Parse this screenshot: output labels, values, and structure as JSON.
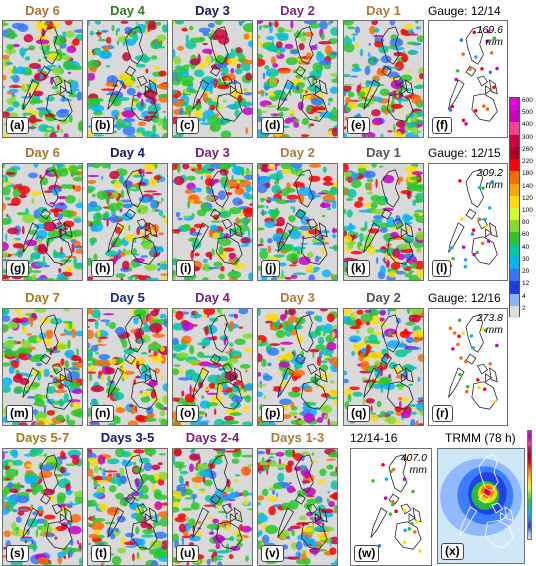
{
  "colors": {
    "day": {
      "Day 6": "#b0742a",
      "Day 4": "#1f7a1f",
      "Day 3": "#141478",
      "Day 2": "#7a1f7a",
      "Day 1": "#b0742a"
    }
  },
  "rows": [
    {
      "panels": [
        {
          "id": "a",
          "title": "Day 6",
          "title_color": "#b0742a",
          "label": "(a)",
          "icon": "rainfall-map-icon"
        },
        {
          "id": "b",
          "title": "Day 4",
          "title_color": "#2e7d1e",
          "label": "(b)",
          "icon": "rainfall-map-icon"
        },
        {
          "id": "c",
          "title": "Day 3",
          "title_color": "#151870",
          "label": "(c)",
          "icon": "rainfall-map-icon"
        },
        {
          "id": "d",
          "title": "Day 2",
          "title_color": "#7c2a7c",
          "label": "(d)",
          "icon": "rainfall-map-icon"
        },
        {
          "id": "e",
          "title": "Day 1",
          "title_color": "#b07a3a",
          "label": "(e)",
          "icon": "rainfall-map-icon"
        }
      ],
      "gauge": {
        "title": "Gauge: 12/14",
        "max": "169.6",
        "unit": "mm",
        "label": "(f)"
      }
    },
    {
      "panels": [
        {
          "id": "g",
          "title": "Day 6",
          "title_color": "#b0742a",
          "label": "(g)",
          "icon": "rainfall-map-icon"
        },
        {
          "id": "h",
          "title": "Day 4",
          "title_color": "#151870",
          "label": "(h)",
          "icon": "rainfall-map-icon"
        },
        {
          "id": "i",
          "title": "Day 3",
          "title_color": "#7c1e7c",
          "label": "(i)",
          "icon": "rainfall-map-icon"
        },
        {
          "id": "j",
          "title": "Day 2",
          "title_color": "#b07a3a",
          "label": "(j)",
          "icon": "rainfall-map-icon"
        },
        {
          "id": "k",
          "title": "Day 1",
          "title_color": "#555555",
          "label": "(k)",
          "icon": "rainfall-map-icon"
        }
      ],
      "gauge": {
        "title": "Gauge: 12/15",
        "max": "209.2",
        "unit": "mm",
        "label": "(l)"
      }
    },
    {
      "panels": [
        {
          "id": "m",
          "title": "Day 7",
          "title_color": "#a47a1a",
          "label": "(m)",
          "icon": "rainfall-map-icon"
        },
        {
          "id": "n",
          "title": "Day 5",
          "title_color": "#1a2a8a",
          "label": "(n)",
          "icon": "rainfall-map-icon"
        },
        {
          "id": "o",
          "title": "Day 4",
          "title_color": "#7c1e7c",
          "label": "(o)",
          "icon": "rainfall-map-icon"
        },
        {
          "id": "p",
          "title": "Day 3",
          "title_color": "#b07a3a",
          "label": "(p)",
          "icon": "rainfall-map-icon"
        },
        {
          "id": "q",
          "title": "Day 2",
          "title_color": "#555555",
          "label": "(q)",
          "icon": "rainfall-map-icon"
        }
      ],
      "gauge": {
        "title": "Gauge: 12/16",
        "max": "273.8",
        "unit": "mm",
        "label": "(r)"
      }
    },
    {
      "panels": [
        {
          "id": "s",
          "title": "Days 5-7",
          "title_color": "#a47a1a",
          "label": "(s)",
          "icon": "rainfall-map-icon"
        },
        {
          "id": "t",
          "title": "Days 3-5",
          "title_color": "#151870",
          "label": "(t)",
          "icon": "rainfall-map-icon"
        },
        {
          "id": "u",
          "title": "Days 2-4",
          "title_color": "#7c1e7c",
          "label": "(u)",
          "icon": "rainfall-map-icon"
        },
        {
          "id": "v",
          "title": "Days 1-3",
          "title_color": "#b07a3a",
          "label": "(v)",
          "icon": "rainfall-map-icon"
        }
      ],
      "gauge": {
        "title": "12/14-16",
        "max": "407.0",
        "unit": "mm",
        "label": "(w)"
      },
      "trmm": {
        "title": "TRMM (78 h)",
        "label": "(x)",
        "icon": "trmm-rainfall-map-icon"
      }
    }
  ],
  "colorbar": {
    "ticks": [
      "600",
      "500",
      "400",
      "300",
      "260",
      "220",
      "180",
      "140",
      "120",
      "100",
      "80",
      "60",
      "40",
      "30",
      "20",
      "12",
      "4",
      "2"
    ],
    "colors": [
      "#e400e4",
      "#c800c8",
      "#ff3c96",
      "#d2003c",
      "#b4001e",
      "#ff0000",
      "#ff6a00",
      "#ffa500",
      "#ffdc00",
      "#d2ff28",
      "#82dc28",
      "#28c828",
      "#00c8a0",
      "#00b4ff",
      "#3278ff",
      "#1e3ce6",
      "#8ab4ff",
      "#dcdcdc"
    ]
  }
}
